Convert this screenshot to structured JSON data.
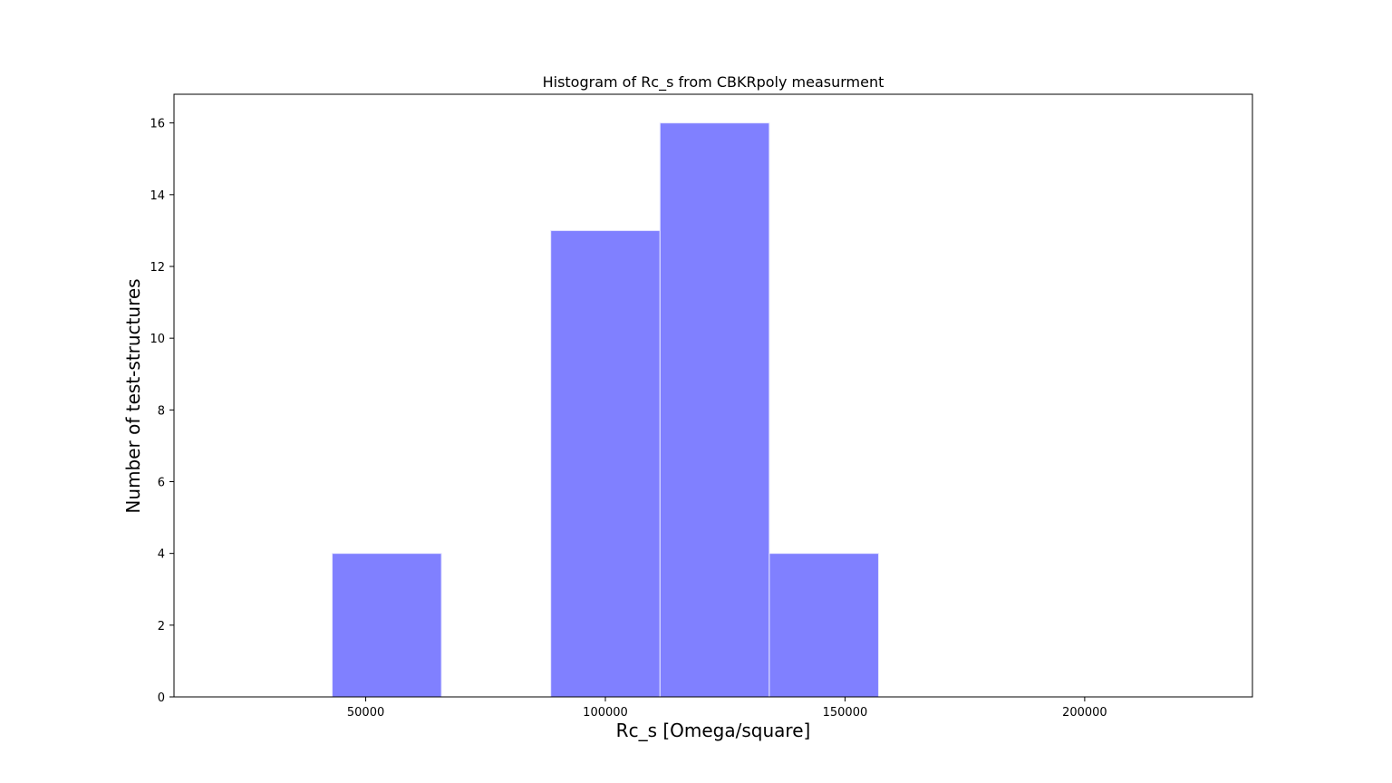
{
  "chart_data": {
    "type": "bar",
    "title": "Histogram of Rc_s from CBKRpoly measurment",
    "xlabel": "Rc_s [Omega/square]",
    "ylabel": "Number of test-structures",
    "xlim": [
      10000,
      235000
    ],
    "ylim": [
      0,
      16.8
    ],
    "x_ticks": [
      50000,
      100000,
      150000,
      200000
    ],
    "y_ticks": [
      0,
      2,
      4,
      6,
      8,
      10,
      12,
      14,
      16
    ],
    "bins": [
      {
        "start": 43000,
        "end": 65800,
        "count": 4
      },
      {
        "start": 88600,
        "end": 111400,
        "count": 13
      },
      {
        "start": 111400,
        "end": 134200,
        "count": 16
      },
      {
        "start": 134200,
        "end": 157000,
        "count": 4
      }
    ],
    "bar_color": "#8080ff",
    "edge_color": "#e6e6ff",
    "grid": false,
    "legend": "none"
  }
}
